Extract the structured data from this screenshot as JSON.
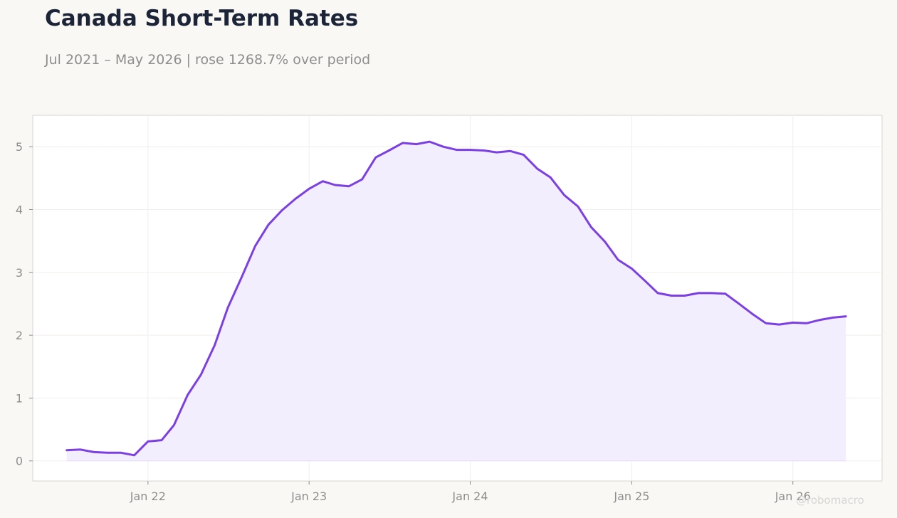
{
  "title": "Canada Short-Term Rates",
  "subtitle": "Jul 2021 – May 2026 | rose 1268.7% over period",
  "watermark": "@robomacro",
  "colors": {
    "line": "#7b3fe4",
    "fill": "#f2eefd",
    "grid": "#f0efee",
    "axis_text": "#8e8e8e",
    "frame": "#d8d6d0",
    "plot_bg": "#ffffff",
    "page_bg": "#f9f8f5"
  },
  "chart_data": {
    "type": "area",
    "title": "Canada Short-Term Rates",
    "subtitle": "Jul 2021 – May 2026 | rose 1268.7% over period",
    "xlabel": "",
    "ylabel": "",
    "ylim": [
      -0.32,
      5.5
    ],
    "xlim": [
      "2021-04-15",
      "2026-07-22"
    ],
    "grid": true,
    "legend": "none",
    "x_ticks": [
      {
        "date": "2022-01-01",
        "label": "Jan 22"
      },
      {
        "date": "2023-01-01",
        "label": "Jan 23"
      },
      {
        "date": "2024-01-01",
        "label": "Jan 24"
      },
      {
        "date": "2025-01-01",
        "label": "Jan 25"
      },
      {
        "date": "2026-01-01",
        "label": "Jan 26"
      }
    ],
    "y_ticks": [
      0,
      1,
      2,
      3,
      4,
      5
    ],
    "x": [
      "2021-07-01",
      "2021-08-01",
      "2021-09-01",
      "2021-10-01",
      "2021-11-01",
      "2021-12-01",
      "2022-01-01",
      "2022-02-01",
      "2022-03-01",
      "2022-04-01",
      "2022-05-01",
      "2022-06-01",
      "2022-07-01",
      "2022-08-01",
      "2022-09-01",
      "2022-10-01",
      "2022-11-01",
      "2022-12-01",
      "2023-01-01",
      "2023-02-01",
      "2023-03-01",
      "2023-04-01",
      "2023-05-01",
      "2023-06-01",
      "2023-07-01",
      "2023-08-01",
      "2023-09-01",
      "2023-10-01",
      "2023-11-01",
      "2023-12-01",
      "2024-01-01",
      "2024-02-01",
      "2024-03-01",
      "2024-04-01",
      "2024-05-01",
      "2024-06-01",
      "2024-07-01",
      "2024-08-01",
      "2024-09-01",
      "2024-10-01",
      "2024-11-01",
      "2024-12-01",
      "2025-01-01",
      "2025-02-01",
      "2025-03-01",
      "2025-04-01",
      "2025-05-01",
      "2025-06-01",
      "2025-07-01",
      "2025-08-01",
      "2025-09-01",
      "2025-10-01",
      "2025-11-01",
      "2025-12-01",
      "2026-01-01",
      "2026-02-01",
      "2026-03-01",
      "2026-04-01",
      "2026-05-01"
    ],
    "series": [
      {
        "values": [
          0.17,
          0.18,
          0.14,
          0.13,
          0.13,
          0.09,
          0.31,
          0.33,
          0.57,
          1.05,
          1.37,
          1.84,
          2.44,
          2.92,
          3.42,
          3.76,
          3.99,
          4.17,
          4.33,
          4.45,
          4.39,
          4.37,
          4.48,
          4.83,
          4.94,
          5.06,
          5.04,
          5.08,
          5.0,
          4.95,
          4.95,
          4.94,
          4.91,
          4.93,
          4.87,
          4.65,
          4.51,
          4.23,
          4.05,
          3.72,
          3.49,
          3.2,
          3.06,
          2.86,
          2.67,
          2.63,
          2.63,
          2.67,
          2.67,
          2.66,
          2.5,
          2.34,
          2.19,
          2.17,
          2.2,
          2.19,
          2.24,
          2.28,
          2.3
        ]
      }
    ]
  }
}
